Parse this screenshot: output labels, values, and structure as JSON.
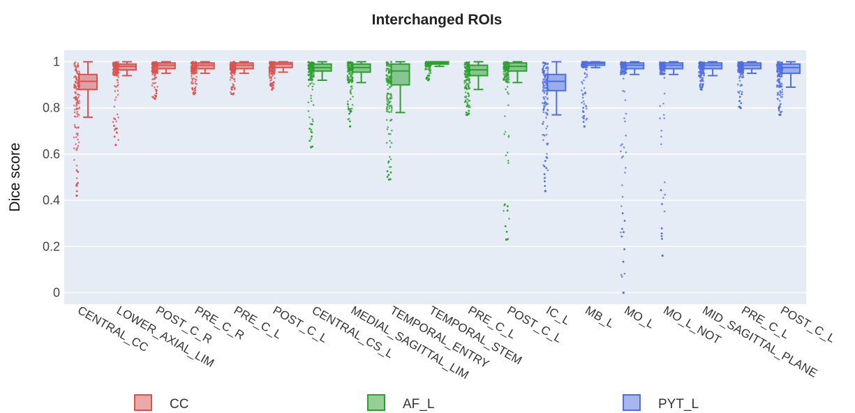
{
  "chart_data": {
    "type": "box",
    "title": "Interchanged ROIs",
    "ylabel": "Dice score",
    "xlabel": "",
    "ylim": [
      -0.05,
      1.05
    ],
    "yticks": [
      0,
      0.2,
      0.4,
      0.6,
      0.8,
      1
    ],
    "ytick_labels": [
      "0",
      "0.2",
      "0.4",
      "0.6",
      "0.8",
      "1"
    ],
    "grid": true,
    "legend_position": "bottom",
    "categories": [
      "CENTRAL_CC",
      "LOWER_AXIAL_LIM",
      "POST_C_R",
      "PRE_C_R",
      "PRE_C_L",
      "POST_C_L",
      "CENTRAL_CS_L",
      "MEDIAL_SAGITTAL_LIM",
      "TEMPORAL_ENTRY",
      "TEMPORAL_STEM",
      "PRE_C_L",
      "POST_C_L",
      "IC_L",
      "MB_L",
      "MO_L",
      "MO_L_NOT",
      "MID_SAGITTAL_PLANE",
      "PRE_C_L",
      "POST_C_L"
    ],
    "series": [
      {
        "name": "CC",
        "color": "#d9534f",
        "boxes": [
          {
            "category_index": 0,
            "min": 0.76,
            "q1": 0.88,
            "median": 0.915,
            "q3": 0.945,
            "max": 1.0,
            "outlier_min": 0.42
          },
          {
            "category_index": 1,
            "min": 0.94,
            "q1": 0.965,
            "median": 0.98,
            "q3": 0.99,
            "max": 1.0,
            "outlier_min": 0.64
          },
          {
            "category_index": 2,
            "min": 0.95,
            "q1": 0.97,
            "median": 0.985,
            "q3": 0.995,
            "max": 1.0,
            "outlier_min": 0.84
          },
          {
            "category_index": 3,
            "min": 0.95,
            "q1": 0.97,
            "median": 0.985,
            "q3": 0.995,
            "max": 1.0,
            "outlier_min": 0.86
          },
          {
            "category_index": 4,
            "min": 0.95,
            "q1": 0.97,
            "median": 0.985,
            "q3": 0.995,
            "max": 1.0,
            "outlier_min": 0.86
          },
          {
            "category_index": 5,
            "min": 0.955,
            "q1": 0.975,
            "median": 0.99,
            "q3": 0.997,
            "max": 1.0,
            "outlier_min": 0.88
          }
        ]
      },
      {
        "name": "AF_L",
        "color": "#2ca02c",
        "boxes": [
          {
            "category_index": 6,
            "min": 0.92,
            "q1": 0.96,
            "median": 0.975,
            "q3": 0.99,
            "max": 1.0,
            "outlier_min": 0.63
          },
          {
            "category_index": 7,
            "min": 0.91,
            "q1": 0.955,
            "median": 0.975,
            "q3": 0.99,
            "max": 1.0,
            "outlier_min": 0.72
          },
          {
            "category_index": 8,
            "min": 0.78,
            "q1": 0.9,
            "median": 0.96,
            "q3": 0.99,
            "max": 1.0,
            "outlier_min": 0.49
          },
          {
            "category_index": 9,
            "min": 0.98,
            "q1": 0.99,
            "median": 0.995,
            "q3": 1.0,
            "max": 1.0,
            "outlier_min": 0.92
          },
          {
            "category_index": 10,
            "min": 0.88,
            "q1": 0.94,
            "median": 0.965,
            "q3": 0.985,
            "max": 1.0,
            "outlier_min": 0.77
          },
          {
            "category_index": 11,
            "min": 0.91,
            "q1": 0.96,
            "median": 0.98,
            "q3": 0.995,
            "max": 1.0,
            "outlier_min": 0.23
          }
        ]
      },
      {
        "name": "PYT_L",
        "color": "#4f6ee0",
        "boxes": [
          {
            "category_index": 12,
            "min": 0.77,
            "q1": 0.875,
            "median": 0.915,
            "q3": 0.945,
            "max": 1.0,
            "outlier_min": 0.44
          },
          {
            "category_index": 13,
            "min": 0.975,
            "q1": 0.985,
            "median": 0.993,
            "q3": 0.998,
            "max": 1.0,
            "outlier_min": 0.72
          },
          {
            "category_index": 14,
            "min": 0.945,
            "q1": 0.97,
            "median": 0.985,
            "q3": 0.995,
            "max": 1.0,
            "outlier_min": 0.0
          },
          {
            "category_index": 15,
            "min": 0.945,
            "q1": 0.97,
            "median": 0.985,
            "q3": 0.995,
            "max": 1.0,
            "outlier_min": 0.16
          },
          {
            "category_index": 16,
            "min": 0.94,
            "q1": 0.97,
            "median": 0.985,
            "q3": 0.995,
            "max": 1.0,
            "outlier_min": 0.88
          },
          {
            "category_index": 17,
            "min": 0.95,
            "q1": 0.97,
            "median": 0.985,
            "q3": 0.995,
            "max": 1.0,
            "outlier_min": 0.8
          },
          {
            "category_index": 18,
            "min": 0.89,
            "q1": 0.95,
            "median": 0.975,
            "q3": 0.99,
            "max": 1.0,
            "outlier_min": 0.77
          }
        ]
      }
    ]
  }
}
